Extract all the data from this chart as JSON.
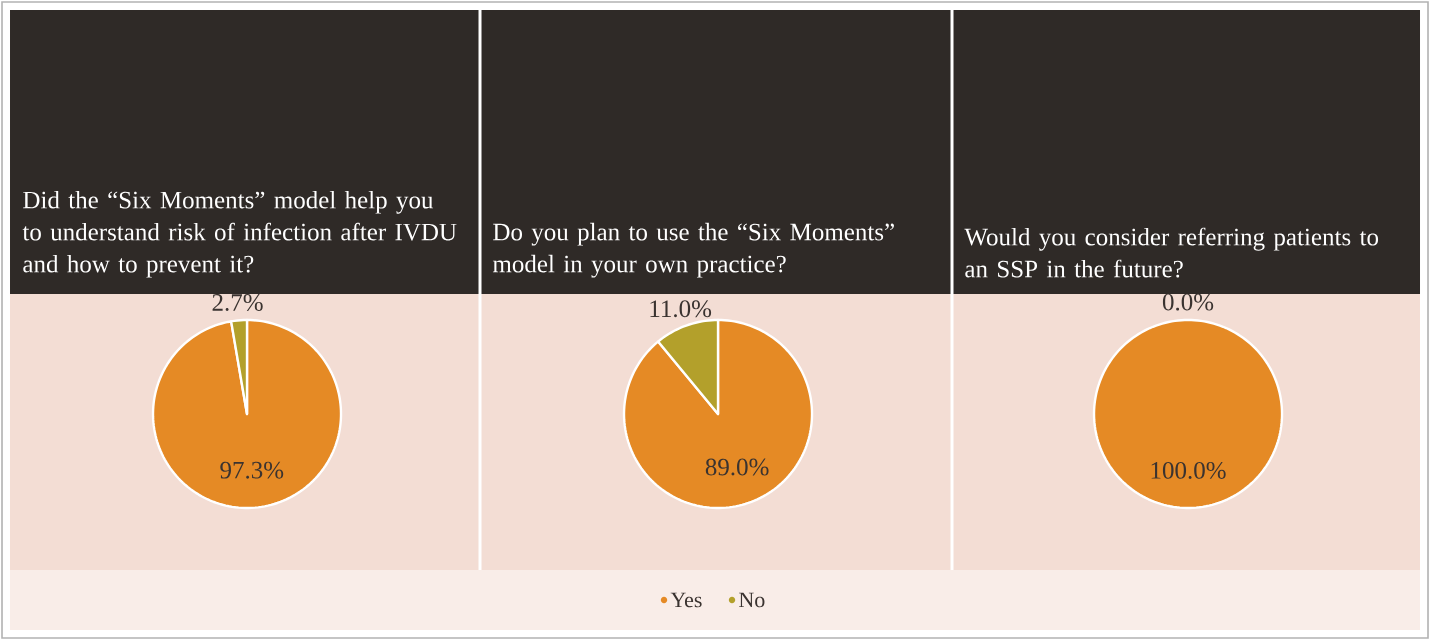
{
  "chart_data": [
    {
      "type": "pie",
      "title": "Did the “Six Moments” model help you to understand risk of infection after IVDU and how to prevent it?",
      "categories": [
        null,
        null
      ],
      "values": [
        97.3,
        2.7
      ],
      "colors": [
        "#e58a25",
        "#b3a02b"
      ],
      "value_labels": [
        "97.3%",
        "2.7%"
      ]
    },
    {
      "type": "pie",
      "title": "Do you plan to use the “Six Moments” model in your own practice?",
      "categories": [
        "Yes",
        "No"
      ],
      "values": [
        89.0,
        11.0
      ],
      "colors": [
        "#e58a25",
        "#b3a02b"
      ],
      "value_labels": [
        "89.0%",
        "11.0%"
      ],
      "legend": "bottom"
    },
    {
      "type": "pie",
      "title": "Would you consider referring patients to an SSP in the future?",
      "categories": [
        null,
        null
      ],
      "values": [
        100.0,
        0.0
      ],
      "colors": [
        "#e58a25",
        "#b3a02b"
      ],
      "value_labels": [
        "100.0%",
        "0.0%"
      ]
    }
  ]
}
